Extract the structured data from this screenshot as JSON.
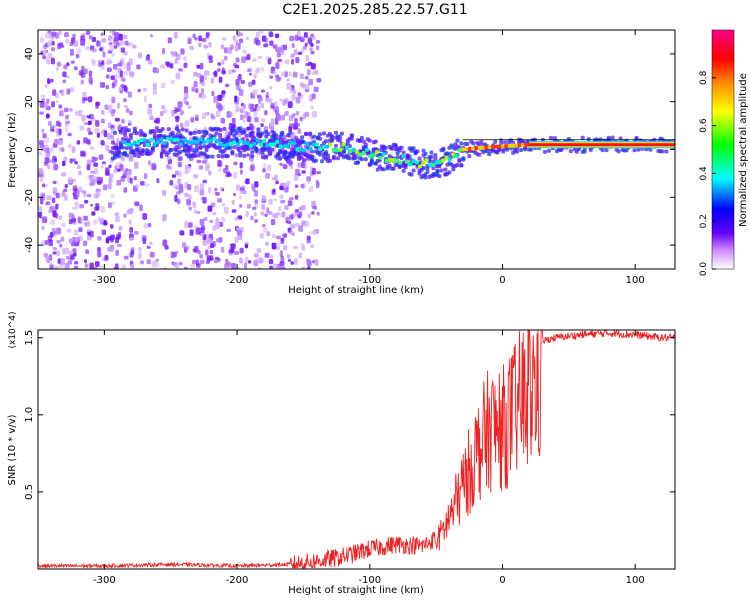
{
  "title": "C2E1.2025.285.22.57.G11",
  "colors": {
    "snr_line": "#ee2222",
    "frame": "#000000",
    "background": "#ffffff"
  },
  "chart_data": [
    {
      "type": "heatmap",
      "name": "spectrogram",
      "xlabel": "Height of straight line (km)",
      "ylabel": "Frequency (Hz)",
      "xlim": [
        -350,
        130
      ],
      "ylim": [
        -50,
        50
      ],
      "xticks": [
        -300,
        -200,
        -100,
        0,
        100
      ],
      "yticks": [
        -40,
        -20,
        0,
        20,
        40
      ],
      "colorbar": {
        "label": "Normalized spectral amplitude",
        "range": [
          0.0,
          1.0
        ],
        "ticks": [
          0.0,
          0.2,
          0.4,
          0.6,
          0.8
        ],
        "colormap": [
          "#ffffff",
          "#cc88ff",
          "#6600ff",
          "#0000ff",
          "#00ffff",
          "#00ff00",
          "#ffff00",
          "#ff8800",
          "#ff0000",
          "#ff0088"
        ]
      },
      "carrier_track": [
        {
          "x": -290,
          "y": 3
        },
        {
          "x": -250,
          "y": 3
        },
        {
          "x": -200,
          "y": 3
        },
        {
          "x": -170,
          "y": 2
        },
        {
          "x": -150,
          "y": 1
        },
        {
          "x": -120,
          "y": 1
        },
        {
          "x": -100,
          "y": -2
        },
        {
          "x": -80,
          "y": -4
        },
        {
          "x": -60,
          "y": -6
        },
        {
          "x": -45,
          "y": -5
        },
        {
          "x": -30,
          "y": 0
        },
        {
          "x": -10,
          "y": 1
        },
        {
          "x": 20,
          "y": 2
        },
        {
          "x": 60,
          "y": 2
        },
        {
          "x": 130,
          "y": 2
        }
      ],
      "noise_region": [
        -350,
        -140
      ]
    },
    {
      "type": "line",
      "name": "snr",
      "xlabel": "Height of straight line (km)",
      "ylabel": "SNR (10 * v/v)",
      "y_multiplier_label": "(x10^4)",
      "xlim": [
        -350,
        130
      ],
      "ylim": [
        0,
        1.55
      ],
      "xticks": [
        -300,
        -200,
        -100,
        0,
        100
      ],
      "yticks": [
        0.5,
        1.0,
        1.5
      ],
      "series": [
        {
          "name": "SNR",
          "x": [
            -350,
            -300,
            -250,
            -200,
            -160,
            -140,
            -120,
            -100,
            -80,
            -60,
            -50,
            -40,
            -30,
            -20,
            -10,
            0,
            10,
            20,
            30,
            40,
            60,
            80,
            100,
            120,
            130
          ],
          "y": [
            0.02,
            0.02,
            0.03,
            0.02,
            0.03,
            0.05,
            0.08,
            0.13,
            0.16,
            0.15,
            0.2,
            0.4,
            0.65,
            0.9,
            1.1,
            1.1,
            1.25,
            1.4,
            1.48,
            1.5,
            1.52,
            1.53,
            1.52,
            1.5,
            1.5
          ]
        }
      ]
    }
  ]
}
